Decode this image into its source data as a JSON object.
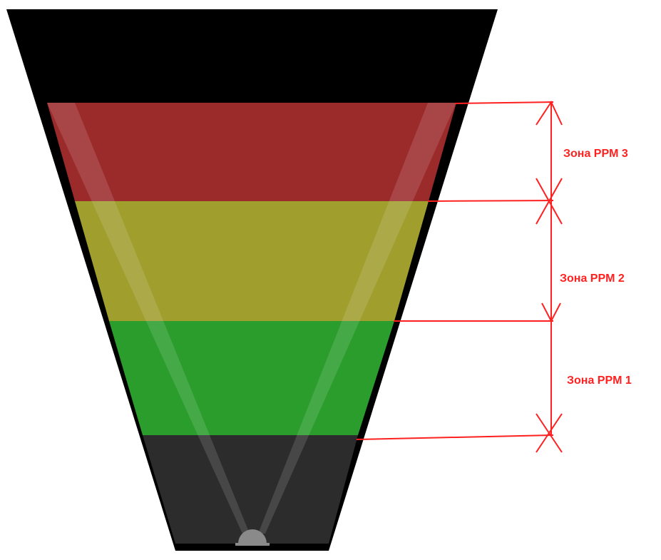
{
  "colors": {
    "background": "#ffffff",
    "funnel_body": "#000000",
    "zone3_fill": "#9b2a2b",
    "zone2_fill": "#a09e2d",
    "zone1_fill": "#2a9d2c",
    "bottom_band_fill": "#2c2c2c",
    "beam_fill": "#ffffff",
    "sensor_fill": "#8a8a8a",
    "annotation": "#ff2020"
  },
  "zones": [
    {
      "id": "zone3",
      "label": "Зона PPM 3"
    },
    {
      "id": "zone2",
      "label": "Зона PPM 2"
    },
    {
      "id": "zone1",
      "label": "Зона PPM 1"
    }
  ],
  "icons": {
    "sensor": "sensor-dome-icon"
  }
}
